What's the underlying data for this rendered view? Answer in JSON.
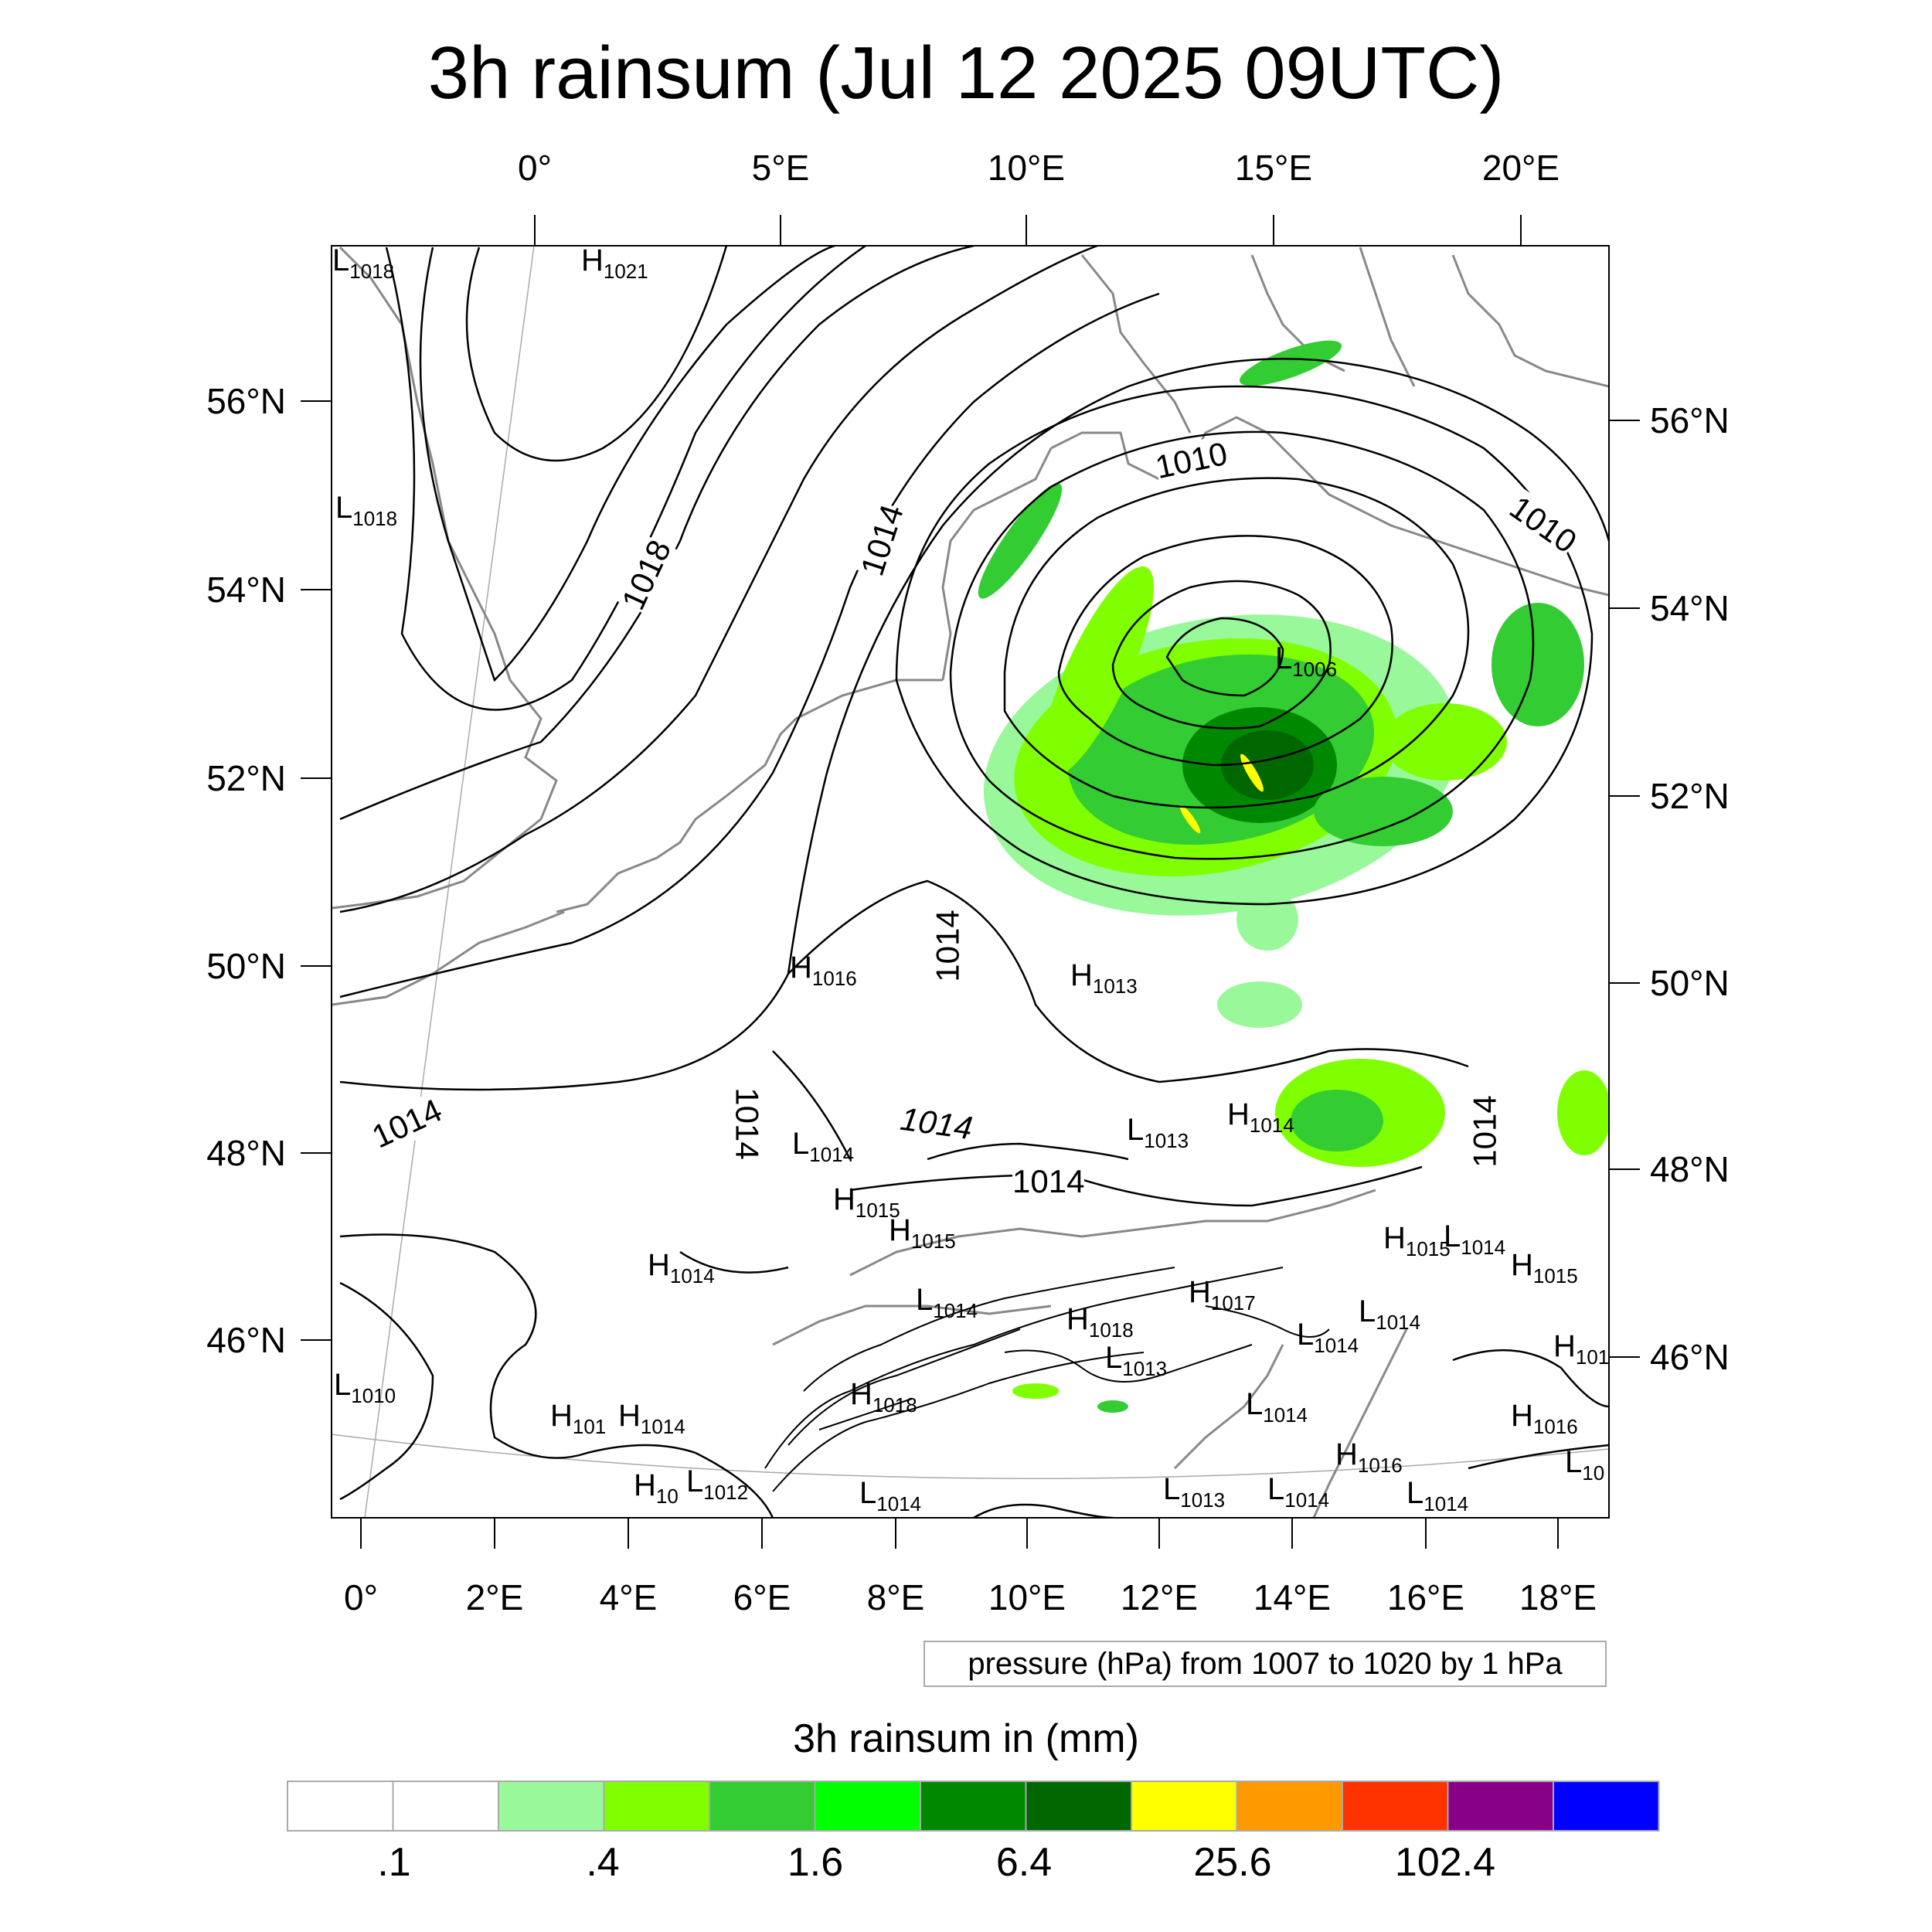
{
  "title": "3h rainsum (Jul 12 2025 09UTC)",
  "top_lon_labels": [
    "0°",
    "5°E",
    "10°E",
    "15°E",
    "20°E"
  ],
  "bottom_lon_labels": [
    "0°",
    "2°E",
    "4°E",
    "6°E",
    "8°E",
    "10°E",
    "12°E",
    "14°E",
    "16°E",
    "18°E"
  ],
  "left_lat_labels": [
    "56°N",
    "54°N",
    "52°N",
    "50°N",
    "48°N",
    "46°N"
  ],
  "right_lat_labels": [
    "56°N",
    "54°N",
    "52°N",
    "50°N",
    "48°N",
    "46°N"
  ],
  "contour_info": "pressure (hPa) from 1007 to 1020 by 1 hPa",
  "colorbar": {
    "title": "3h rainsum in (mm)",
    "tick_labels": [
      ".1",
      ".4",
      "1.6",
      "6.4",
      "25.6",
      "102.4"
    ],
    "colors": [
      "#ffffff",
      "#ffffff",
      "#99f899",
      "#80ff00",
      "#33cc33",
      "#00ff00",
      "#008800",
      "#006600",
      "#ffff00",
      "#ff9900",
      "#ff3300",
      "#880088",
      "#0000ff"
    ]
  },
  "isobar_labels": [
    "1018",
    "1014",
    "1010",
    "1010",
    "1014",
    "1014",
    "1014",
    "1014",
    "1014",
    "1014",
    "1014"
  ],
  "pressure_centers": [
    {
      "type": "L",
      "value": "1018"
    },
    {
      "type": "H",
      "value": "1021"
    },
    {
      "type": "L",
      "value": "1018"
    },
    {
      "type": "L",
      "value": "1006"
    },
    {
      "type": "H",
      "value": "1016"
    },
    {
      "type": "H",
      "value": "1013"
    },
    {
      "type": "L",
      "value": "1013"
    },
    {
      "type": "H",
      "value": "1014"
    },
    {
      "type": "L",
      "value": "1014"
    },
    {
      "type": "H",
      "value": "1015"
    },
    {
      "type": "H",
      "value": "1015"
    },
    {
      "type": "H",
      "value": "1014"
    },
    {
      "type": "L",
      "value": "1014"
    },
    {
      "type": "H",
      "value": "1018"
    },
    {
      "type": "H",
      "value": "1017"
    },
    {
      "type": "H",
      "value": "1015"
    },
    {
      "type": "L",
      "value": "1014"
    },
    {
      "type": "H",
      "value": "1015"
    },
    {
      "type": "L",
      "value": "1014"
    },
    {
      "type": "L",
      "value": "1014"
    },
    {
      "type": "L",
      "value": "1013"
    },
    {
      "type": "L",
      "value": "1010"
    },
    {
      "type": "H",
      "value": "101"
    },
    {
      "type": "H",
      "value": "1014"
    },
    {
      "type": "H",
      "value": "1018"
    },
    {
      "type": "L",
      "value": "1014"
    },
    {
      "type": "H",
      "value": "1016"
    },
    {
      "type": "H",
      "value": "101"
    },
    {
      "type": "H",
      "value": "10"
    },
    {
      "type": "L",
      "value": "1012"
    },
    {
      "type": "L",
      "value": "1014"
    },
    {
      "type": "L",
      "value": "1013"
    },
    {
      "type": "L",
      "value": "1014"
    },
    {
      "type": "H",
      "value": "1016"
    },
    {
      "type": "L",
      "value": "1014"
    },
    {
      "type": "L",
      "value": "10"
    }
  ]
}
